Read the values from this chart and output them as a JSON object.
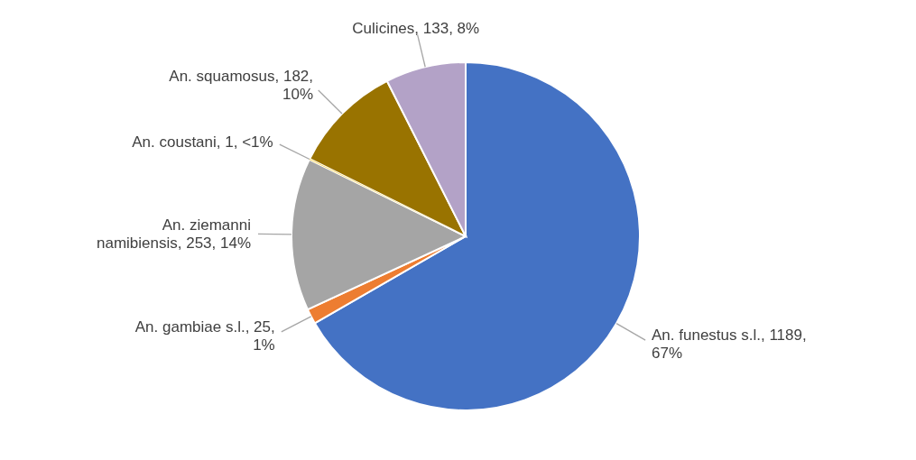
{
  "chart_data": {
    "type": "pie",
    "categories": [
      "An. funestus s.l.",
      "An. gambiae s.l.",
      "An. ziemanni namibiensis",
      "An. coustani",
      "An. squamosus",
      "Culicines"
    ],
    "values": [
      1189,
      25,
      253,
      1,
      182,
      133
    ],
    "colors": [
      "#4472c4",
      "#ed7d31",
      "#a5a5a5",
      "#ffc000",
      "#997300",
      "#b3a2c7"
    ],
    "value_labels": [
      "1189, 67%",
      "25, 1%",
      "253, 14%",
      "1, <1%",
      "182, 10%",
      "133, 8%"
    ],
    "legend": false
  }
}
